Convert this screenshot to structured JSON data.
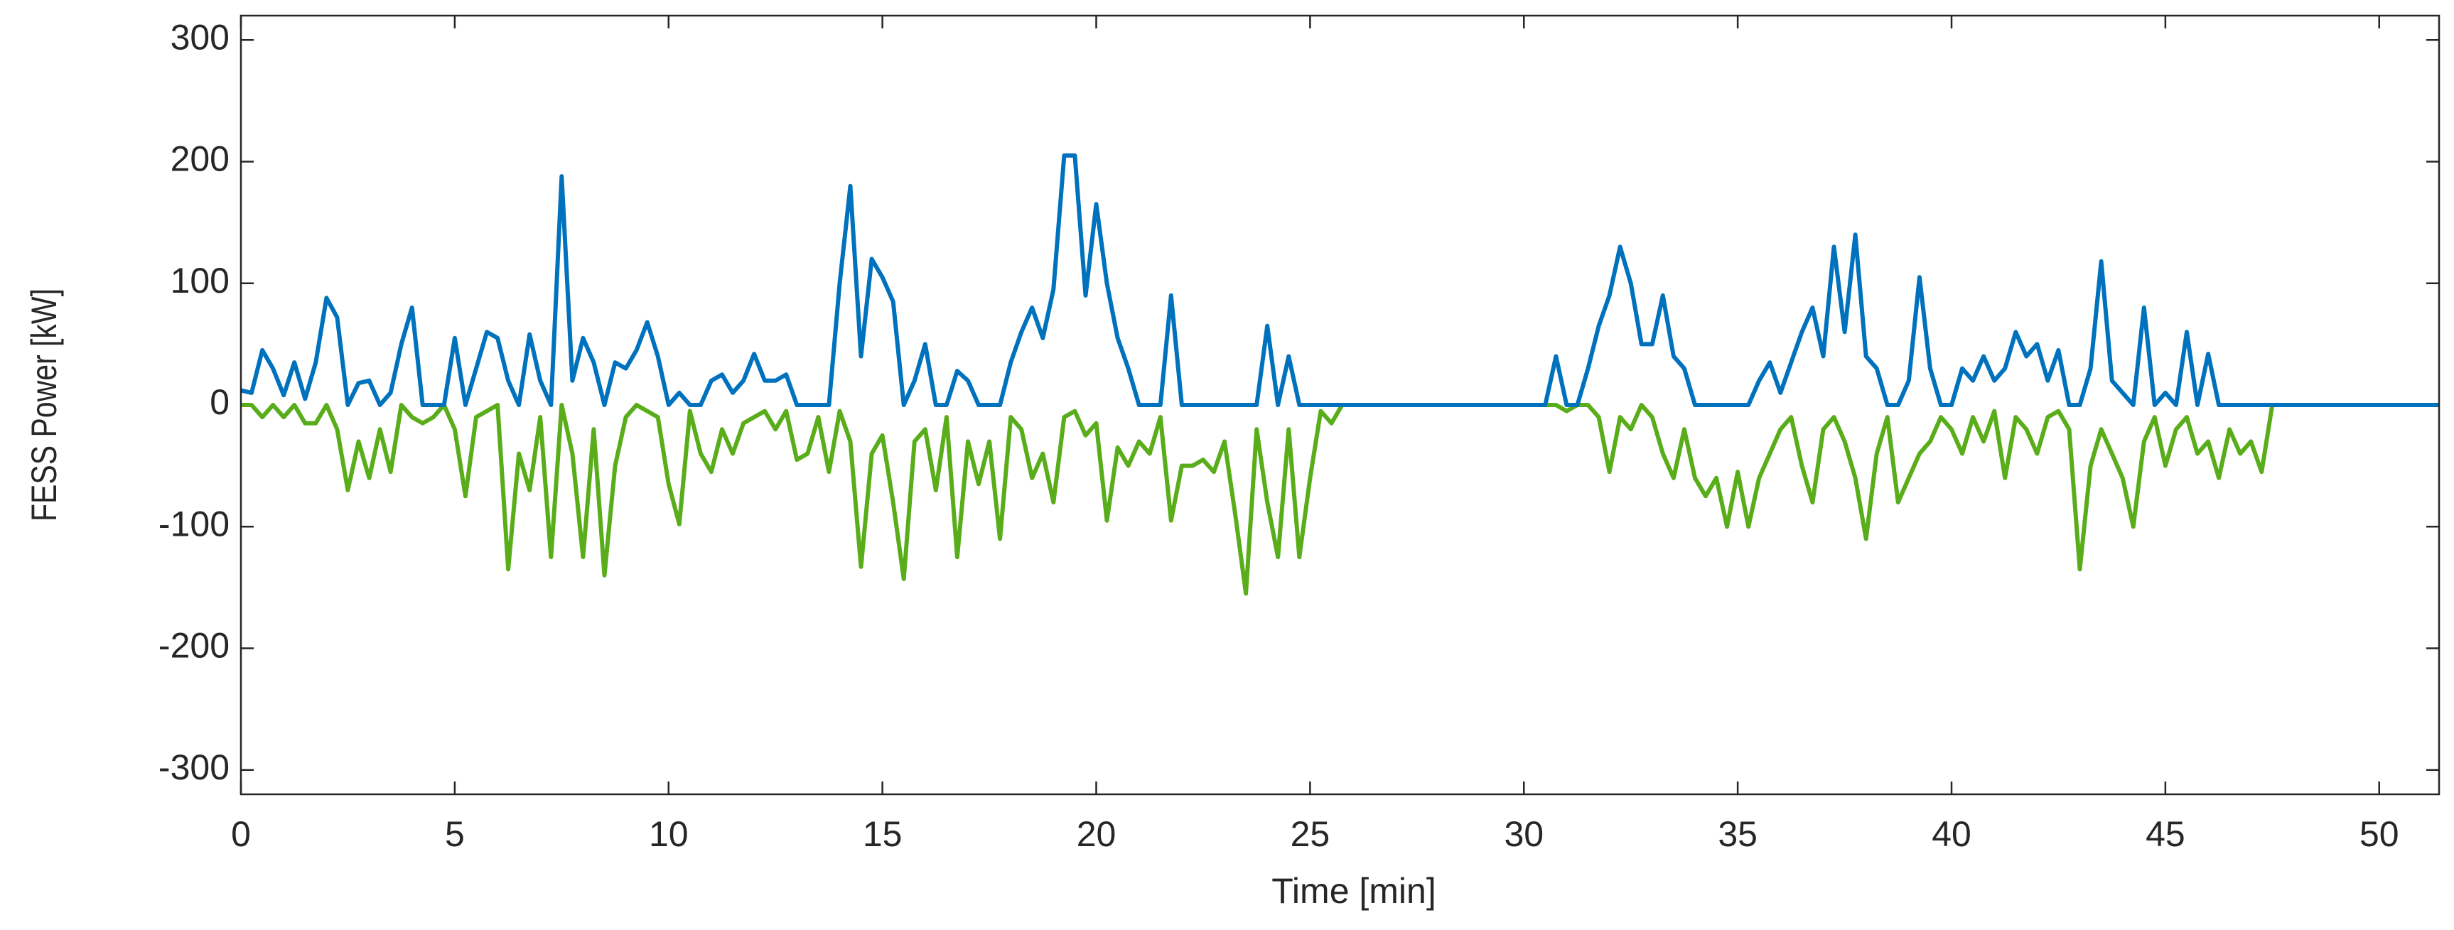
{
  "chart_data": {
    "type": "line",
    "xlabel": "Time [min]",
    "ylabel": "FESS Power [kW]",
    "xlim": [
      0,
      51.4
    ],
    "ylim": [
      -320,
      320
    ],
    "xticks": [
      0,
      5,
      10,
      15,
      20,
      25,
      30,
      35,
      40,
      45,
      50
    ],
    "yticks": [
      -300,
      -200,
      -100,
      0,
      100,
      200,
      300
    ],
    "grid": false,
    "x": [
      0,
      0.25,
      0.5,
      0.75,
      1,
      1.25,
      1.5,
      1.75,
      2,
      2.25,
      2.5,
      2.75,
      3,
      3.25,
      3.5,
      3.75,
      4,
      4.25,
      4.5,
      4.75,
      5,
      5.25,
      5.5,
      5.75,
      6,
      6.25,
      6.5,
      6.75,
      7,
      7.25,
      7.5,
      7.75,
      8,
      8.25,
      8.5,
      8.75,
      9,
      9.25,
      9.5,
      9.75,
      10,
      10.25,
      10.5,
      10.75,
      11,
      11.25,
      11.5,
      11.75,
      12,
      12.25,
      12.5,
      12.75,
      13,
      13.25,
      13.5,
      13.75,
      14,
      14.25,
      14.5,
      14.75,
      15,
      15.25,
      15.5,
      15.75,
      16,
      16.25,
      16.5,
      16.75,
      17,
      17.25,
      17.5,
      17.75,
      18,
      18.25,
      18.5,
      18.75,
      19,
      19.25,
      19.5,
      19.75,
      20,
      20.25,
      20.5,
      20.75,
      21,
      21.25,
      21.5,
      21.75,
      22,
      22.25,
      22.5,
      22.75,
      23,
      23.25,
      23.5,
      23.75,
      24,
      24.25,
      24.5,
      24.75,
      25,
      25.25,
      25.5,
      25.75,
      30.5,
      30.75,
      31,
      31.25,
      31.5,
      31.75,
      32,
      32.25,
      32.5,
      32.75,
      33,
      33.25,
      33.5,
      33.75,
      34,
      34.25,
      34.5,
      34.75,
      35,
      35.25,
      35.5,
      35.75,
      36,
      36.25,
      36.5,
      36.75,
      37,
      37.25,
      37.5,
      37.75,
      38,
      38.25,
      38.5,
      38.75,
      39,
      39.25,
      39.5,
      39.75,
      40,
      40.25,
      40.5,
      40.75,
      41,
      41.25,
      41.5,
      41.75,
      42,
      42.25,
      42.5,
      42.75,
      43,
      43.25,
      43.5,
      43.75,
      44,
      44.25,
      44.5,
      44.75,
      45,
      45.25,
      45.5,
      45.75,
      46,
      46.25,
      46.5,
      46.75,
      47,
      47.25,
      47.5,
      51.4
    ],
    "series": [
      {
        "color": "#0072bd",
        "values": [
          12,
          10,
          45,
          30,
          8,
          35,
          5,
          35,
          88,
          72,
          0,
          18,
          20,
          0,
          10,
          50,
          80,
          0,
          0,
          0,
          55,
          0,
          30,
          60,
          55,
          20,
          0,
          58,
          20,
          0,
          188,
          20,
          55,
          35,
          0,
          35,
          30,
          45,
          68,
          40,
          0,
          10,
          0,
          0,
          20,
          25,
          10,
          20,
          42,
          20,
          20,
          25,
          0,
          0,
          0,
          0,
          100,
          180,
          40,
          120,
          105,
          85,
          0,
          20,
          50,
          0,
          0,
          28,
          20,
          0,
          0,
          0,
          35,
          60,
          80,
          55,
          95,
          205,
          205,
          90,
          165,
          100,
          55,
          30,
          0,
          0,
          0,
          90,
          0,
          0,
          0,
          0,
          0,
          0,
          0,
          0,
          65,
          0,
          40,
          0,
          0,
          0,
          0,
          0,
          0,
          40,
          0,
          0,
          30,
          65,
          90,
          130,
          100,
          50,
          50,
          90,
          40,
          30,
          0,
          0,
          0,
          0,
          0,
          0,
          20,
          35,
          10,
          35,
          60,
          80,
          40,
          130,
          60,
          140,
          40,
          30,
          0,
          0,
          20,
          105,
          30,
          0,
          0,
          30,
          20,
          40,
          20,
          30,
          60,
          40,
          50,
          20,
          45,
          0,
          0,
          30,
          118,
          20,
          10,
          0,
          80,
          0,
          10,
          0,
          60,
          0,
          42,
          0,
          0,
          0,
          0,
          0,
          0,
          0
        ]
      },
      {
        "color": "#5aad1a",
        "values": [
          0,
          0,
          -10,
          0,
          -10,
          0,
          -15,
          -15,
          0,
          -20,
          -70,
          -30,
          -60,
          -20,
          -55,
          0,
          -10,
          -15,
          -10,
          0,
          -20,
          -75,
          -10,
          -5,
          0,
          -135,
          -40,
          -70,
          -10,
          -125,
          0,
          -40,
          -125,
          -20,
          -140,
          -50,
          -10,
          0,
          -5,
          -10,
          -65,
          -98,
          -5,
          -40,
          -55,
          -20,
          -40,
          -15,
          -10,
          -5,
          -20,
          -5,
          -45,
          -40,
          -10,
          -55,
          -5,
          -30,
          -133,
          -40,
          -25,
          -80,
          -143,
          -30,
          -20,
          -70,
          -10,
          -125,
          -30,
          -65,
          -30,
          -110,
          -10,
          -20,
          -60,
          -40,
          -80,
          -10,
          -5,
          -25,
          -15,
          -95,
          -35,
          -50,
          -30,
          -40,
          -10,
          -95,
          -50,
          -50,
          -45,
          -55,
          -30,
          -90,
          -155,
          -20,
          -80,
          -125,
          -20,
          -125,
          -60,
          -5,
          -15,
          0,
          0,
          0,
          -5,
          0,
          0,
          -10,
          -55,
          -10,
          -20,
          0,
          -10,
          -40,
          -60,
          -20,
          -60,
          -75,
          -60,
          -100,
          -55,
          -100,
          -60,
          -40,
          -20,
          -10,
          -50,
          -80,
          -20,
          -10,
          -30,
          -60,
          -110,
          -40,
          -10,
          -80,
          -60,
          -40,
          -30,
          -10,
          -20,
          -40,
          -10,
          -30,
          -5,
          -60,
          -10,
          -20,
          -40,
          -10,
          -5,
          -20,
          -135,
          -50,
          -20,
          -40,
          -60,
          -100,
          -30,
          -10,
          -50,
          -20,
          -10,
          -40,
          -30,
          -60,
          -20,
          -40,
          -30,
          -55,
          0,
          null
        ]
      }
    ]
  }
}
